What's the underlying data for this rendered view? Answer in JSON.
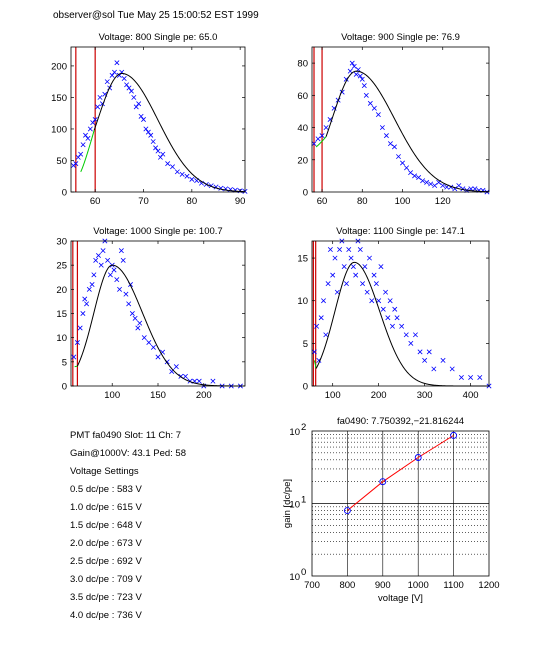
{
  "header": "observer@sol  Tue May 25 15:00:52 EST 1999",
  "info": {
    "pmt": "PMT fa0490 Slot: 11 Ch: 7",
    "gain": "Gain@1000V: 43.1 Ped: 58",
    "settings_title": "Voltage Settings",
    "settings": [
      "0.5 dc/pe : 583 V",
      "1.0 dc/pe : 615 V",
      "1.5 dc/pe : 648 V",
      "2.0 dc/pe : 673 V",
      "2.5 dc/pe : 692 V",
      "3.0 dc/pe : 709 V",
      "3.5 dc/pe : 723 V",
      "4.0 dc/pe : 736 V"
    ]
  },
  "colors": {
    "points": "#0000ff",
    "fit": "#000000",
    "lowfit": "#00cc00",
    "markers": "#cc0000",
    "gainline": "#ff0000"
  },
  "chart_data": [
    {
      "type": "scatter",
      "title": "Voltage: 800 Single pe: 65.0",
      "xlim": [
        55,
        91
      ],
      "ylim": [
        0,
        230
      ],
      "xticks": [
        60,
        70,
        80,
        90
      ],
      "yticks": [
        0,
        50,
        100,
        150,
        200
      ],
      "markers": [
        56,
        60
      ],
      "fit": {
        "amp": 188,
        "mu": 65.5,
        "sl": 5.0,
        "sr": 7.5,
        "cross": 59.8,
        "base": 32
      },
      "x": [
        55.5,
        56,
        56.5,
        57,
        57.5,
        58,
        58.5,
        59,
        59.5,
        60,
        60.5,
        61,
        61.5,
        62,
        62.5,
        63,
        63.5,
        64,
        64.5,
        65,
        65.5,
        66,
        66.5,
        67,
        67.5,
        68,
        68.5,
        69,
        69.5,
        70,
        70.5,
        71,
        71.5,
        72,
        72.5,
        73,
        73.5,
        74,
        75,
        76,
        77,
        78,
        79,
        80,
        81,
        82,
        83,
        84,
        85,
        86,
        87,
        88,
        89,
        90,
        91
      ],
      "y": [
        42,
        45,
        55,
        60,
        75,
        90,
        85,
        100,
        110,
        115,
        135,
        150,
        140,
        155,
        175,
        165,
        185,
        190,
        205,
        185,
        190,
        180,
        170,
        165,
        160,
        150,
        135,
        140,
        120,
        115,
        100,
        95,
        90,
        80,
        70,
        65,
        55,
        60,
        45,
        40,
        32,
        28,
        25,
        20,
        18,
        14,
        12,
        10,
        8,
        6,
        5,
        4,
        3,
        2,
        1
      ]
    },
    {
      "type": "scatter",
      "title": "Voltage: 900 Single pe: 76.9",
      "xlim": [
        55,
        143
      ],
      "ylim": [
        0,
        90
      ],
      "xticks": [
        60,
        80,
        100,
        120
      ],
      "yticks": [
        0,
        20,
        40,
        60,
        80
      ],
      "markers": [
        56,
        60
      ],
      "fit": {
        "amp": 75,
        "mu": 77,
        "sl": 12,
        "sr": 19,
        "cross": 62,
        "base": 28
      },
      "x": [
        56,
        58,
        60,
        62,
        64,
        66,
        68,
        70,
        72,
        74,
        75,
        76,
        77,
        78,
        79,
        80,
        81,
        82,
        84,
        86,
        88,
        90,
        92,
        94,
        96,
        98,
        100,
        102,
        104,
        106,
        108,
        110,
        112,
        114,
        116,
        118,
        120,
        122,
        124,
        126,
        128,
        130,
        132,
        134,
        136,
        138,
        140,
        142
      ],
      "y": [
        30,
        33,
        35,
        40,
        45,
        52,
        57,
        62,
        70,
        75,
        80,
        78,
        73,
        76,
        72,
        70,
        66,
        60,
        55,
        52,
        48,
        40,
        35,
        30,
        28,
        22,
        18,
        15,
        12,
        10,
        9,
        7,
        6,
        5,
        4,
        6,
        4,
        3,
        3,
        2,
        4,
        2,
        1,
        2,
        2,
        1,
        1,
        0
      ]
    },
    {
      "type": "scatter",
      "title": "Voltage: 1000 Single pe: 100.7",
      "xlim": [
        55,
        245
      ],
      "ylim": [
        0,
        30
      ],
      "xticks": [
        100,
        150,
        200
      ],
      "yticks": [
        0,
        5,
        10,
        15,
        20,
        25,
        30
      ],
      "markers": [
        57,
        62
      ],
      "fit": {
        "amp": 25,
        "mu": 100,
        "sl": 20,
        "sr": 33,
        "cross": 62,
        "base": 4
      },
      "x": [
        58,
        62,
        65,
        68,
        70,
        72,
        75,
        78,
        80,
        82,
        85,
        88,
        90,
        92,
        95,
        98,
        100,
        102,
        105,
        108,
        110,
        112,
        115,
        118,
        120,
        122,
        125,
        128,
        130,
        135,
        140,
        145,
        150,
        155,
        160,
        165,
        170,
        175,
        180,
        185,
        190,
        195,
        200,
        210,
        220,
        230,
        240
      ],
      "y": [
        6,
        9,
        12,
        15,
        18,
        17,
        20,
        21,
        23,
        26,
        27,
        25,
        28,
        30,
        26,
        23,
        25,
        24,
        22,
        20,
        28,
        26,
        19,
        17,
        21,
        15,
        14,
        12,
        13,
        10,
        9,
        8,
        6,
        7,
        5,
        3,
        4,
        2,
        2,
        1,
        1,
        1,
        0,
        1,
        0,
        0,
        0
      ]
    },
    {
      "type": "scatter",
      "title": "Voltage: 1100 Single pe: 147.1",
      "xlim": [
        55,
        440
      ],
      "ylim": [
        0,
        17
      ],
      "xticks": [
        100,
        200,
        300,
        400
      ],
      "yticks": [
        0,
        5,
        10,
        15
      ],
      "markers": [
        58,
        63
      ],
      "fit": {
        "amp": 14.5,
        "mu": 147,
        "sl": 42,
        "sr": 55,
        "cross": 64,
        "base": 3
      },
      "x": [
        60,
        65,
        70,
        75,
        80,
        85,
        90,
        95,
        100,
        105,
        110,
        115,
        120,
        125,
        130,
        135,
        140,
        145,
        150,
        155,
        160,
        165,
        170,
        175,
        180,
        185,
        190,
        195,
        200,
        205,
        210,
        215,
        220,
        225,
        230,
        235,
        240,
        250,
        260,
        270,
        280,
        290,
        300,
        310,
        320,
        340,
        360,
        380,
        400,
        420,
        440
      ],
      "y": [
        4,
        7,
        3,
        8,
        10,
        6,
        12,
        16,
        13,
        15,
        11,
        16,
        17,
        14,
        12,
        16,
        15,
        14,
        13,
        17,
        16,
        12,
        14,
        11,
        15,
        10,
        13,
        12,
        10,
        14,
        9,
        11,
        8,
        10,
        7,
        9,
        8,
        7,
        6,
        5,
        6,
        4,
        3,
        4,
        2,
        3,
        2,
        1,
        1,
        1,
        0
      ]
    },
    {
      "type": "line",
      "title": "fa0490: 7.750392,−21.816244",
      "xlabel": "voltage [V]",
      "ylabel": "gain [dc/pe]",
      "xlim": [
        700,
        1200
      ],
      "ylim": [
        1,
        100
      ],
      "yscale": "log",
      "xticks": [
        700,
        800,
        900,
        1000,
        1100,
        1200
      ],
      "x": [
        800,
        900,
        1000,
        1100
      ],
      "y": [
        8,
        20,
        43.1,
        87
      ]
    }
  ]
}
